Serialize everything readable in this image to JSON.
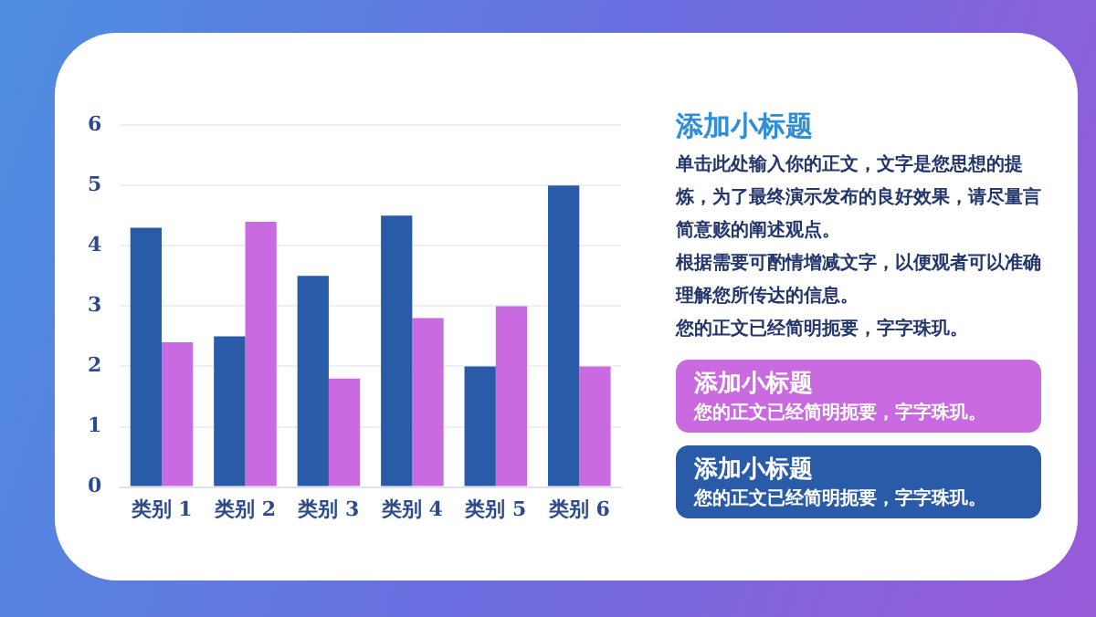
{
  "chart_data": {
    "type": "bar",
    "categories": [
      "类别 1",
      "类别 2",
      "类别 3",
      "类别 4",
      "类别 5",
      "类别 6"
    ],
    "series": [
      {
        "color": "#2a5ba9",
        "values": [
          4.3,
          2.5,
          3.5,
          4.5,
          2.0,
          5.0
        ]
      },
      {
        "color": "#c96ae0",
        "values": [
          2.4,
          4.4,
          1.8,
          2.8,
          3.0,
          2.0
        ]
      }
    ],
    "ylim": [
      0,
      6
    ],
    "yticks": [
      0,
      1,
      2,
      3,
      4,
      5,
      6
    ],
    "grid": "y",
    "legend": false,
    "annotations": [
      "添加小标题",
      "单击此处输入你的正文，文字是您思想的提炼，为了最终演示发布的良好效果，请尽量言简意赅的阐述观点。",
      "根据需要可酌情增减文字，以便观者可以准确理解您所传达的信息。",
      "您的正文已经简明扼要，字字珠玑。",
      "添加小标题",
      "您的正文已经简明扼要，字字珠玑。",
      "添加小标题",
      "您的正文已经简明扼要，字字珠玑。"
    ]
  }
}
